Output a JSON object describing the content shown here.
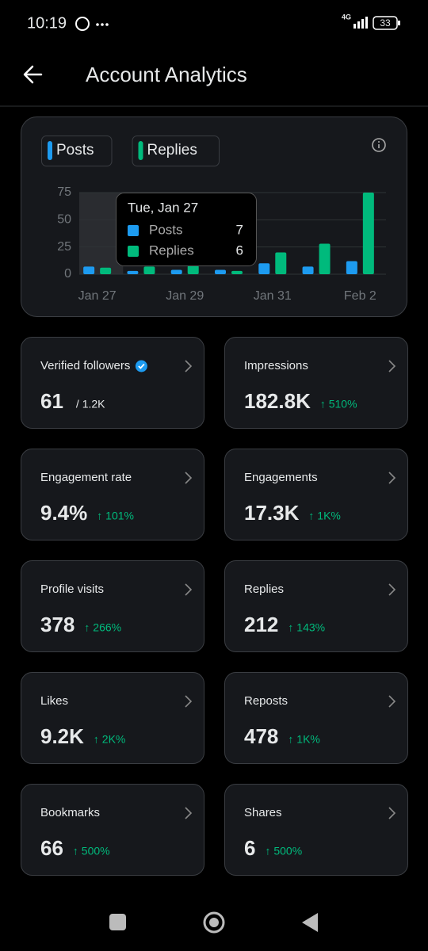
{
  "status_bar": {
    "time": "10:19",
    "network": "4G",
    "battery": "33"
  },
  "header": {
    "title": "Account Analytics"
  },
  "chart_data": {
    "type": "bar",
    "categories": [
      "Jan 27",
      null,
      "Jan 29",
      null,
      "Jan 31",
      null,
      "Feb 2"
    ],
    "series": [
      {
        "name": "Posts",
        "color": "#1d9bf0",
        "values": [
          7,
          3,
          4,
          4,
          10,
          7,
          12
        ]
      },
      {
        "name": "Replies",
        "color": "#00ba7c",
        "values": [
          6,
          7,
          8,
          3,
          20,
          28,
          75
        ]
      }
    ],
    "ylim": [
      0,
      75
    ],
    "yticks": [
      0,
      25,
      50,
      75
    ],
    "grid": true,
    "tooltip": {
      "title": "Tue, Jan 27",
      "highlight_index": 0
    }
  },
  "cards": [
    {
      "label": "Verified followers",
      "value": "61",
      "total": "/ 1.2K",
      "verified": true
    },
    {
      "label": "Impressions",
      "value": "182.8K",
      "change": "↑ 510%"
    },
    {
      "label": "Engagement rate",
      "value": "9.4%",
      "change": "↑ 101%"
    },
    {
      "label": "Engagements",
      "value": "17.3K",
      "change": "↑ 1K%"
    },
    {
      "label": "Profile visits",
      "value": "378",
      "change": "↑ 266%"
    },
    {
      "label": "Replies",
      "value": "212",
      "change": "↑ 143%"
    },
    {
      "label": "Likes",
      "value": "9.2K",
      "change": "↑ 2K%"
    },
    {
      "label": "Reposts",
      "value": "478",
      "change": "↑ 1K%"
    },
    {
      "label": "Bookmarks",
      "value": "66",
      "change": "↑ 500%"
    },
    {
      "label": "Shares",
      "value": "6",
      "change": "↑ 500%"
    }
  ]
}
